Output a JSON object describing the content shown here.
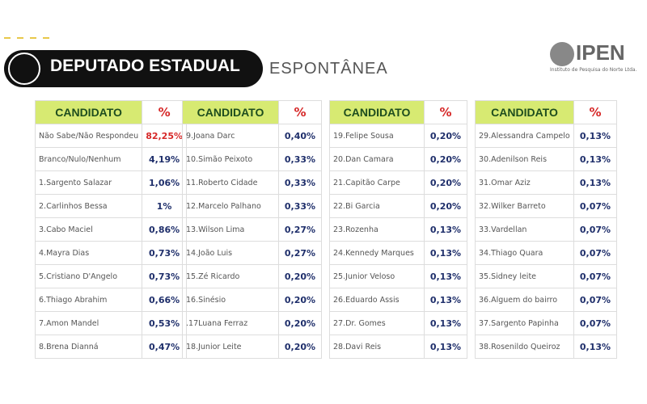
{
  "header": {
    "title": "DEPUTADO ESTADUAL",
    "subtitle": "ESPONTÂNEA",
    "logo": "IPEN",
    "logo_caption": "Instituto de Pesquisa do Norte Ltda."
  },
  "tables": [
    {
      "columns": [
        "CANDIDATO",
        "%"
      ],
      "rows": [
        [
          "Não Sabe/Não Respondeu",
          "82,25%"
        ],
        [
          "Branco/Nulo/Nenhum",
          "4,19%"
        ],
        [
          "1.Sargento Salazar",
          "1,06%"
        ],
        [
          "2.Carlinhos Bessa",
          "1%"
        ],
        [
          "3.Cabo Maciel",
          "0,86%"
        ],
        [
          "4.Mayra Dias",
          "0,73%"
        ],
        [
          "5.Cristiano D'Angelo",
          "0,73%"
        ],
        [
          "6.Thiago Abrahim",
          "0,66%"
        ],
        [
          "7.Amon Mandel",
          "0,53%"
        ],
        [
          "8.Brena Dianná",
          "0,47%"
        ]
      ]
    },
    {
      "columns": [
        "CANDIDATO",
        "%"
      ],
      "rows": [
        [
          "9.Joana Darc",
          "0,40%"
        ],
        [
          "10.Simão Peixoto",
          "0,33%"
        ],
        [
          "11.Roberto Cidade",
          "0,33%"
        ],
        [
          "12.Marcelo Palhano",
          "0,33%"
        ],
        [
          "13.Wilson Lima",
          "0,27%"
        ],
        [
          "14.João Luis",
          "0,27%"
        ],
        [
          "15.Zé Ricardo",
          "0,20%"
        ],
        [
          "16.Sinésio",
          "0,20%"
        ],
        [
          ".17Luana Ferraz",
          "0,20%"
        ],
        [
          "18.Junior Leite",
          "0,20%"
        ]
      ]
    },
    {
      "columns": [
        "CANDIDATO",
        "%"
      ],
      "rows": [
        [
          "19.Felipe Sousa",
          "0,20%"
        ],
        [
          "20.Dan Camara",
          "0,20%"
        ],
        [
          "21.Capitão Carpe",
          "0,20%"
        ],
        [
          "22.Bi Garcia",
          "0,20%"
        ],
        [
          "23.Rozenha",
          "0,13%"
        ],
        [
          "24.Kennedy Marques",
          "0,13%"
        ],
        [
          "25.Junior Veloso",
          "0,13%"
        ],
        [
          "26.Eduardo Assis",
          "0,13%"
        ],
        [
          "27.Dr. Gomes",
          "0,13%"
        ],
        [
          "28.Davi Reis",
          "0,13%"
        ]
      ]
    },
    {
      "columns": [
        "CANDIDATO",
        "%"
      ],
      "rows": [
        [
          "29.Alessandra Campelo",
          "0,13%"
        ],
        [
          "30.Adenilson Reis",
          "0,13%"
        ],
        [
          "31.Omar Aziz",
          "0,13%"
        ],
        [
          "32.Wilker Barreto",
          "0,07%"
        ],
        [
          "33.Vardellan",
          "0,07%"
        ],
        [
          "34.Thiago Quara",
          "0,07%"
        ],
        [
          "35.Sidney leite",
          "0,07%"
        ],
        [
          "36.Alguem do bairro",
          "0,07%"
        ],
        [
          "37.Sargento Papinha",
          "0,07%"
        ],
        [
          "38.Rosenildo Queiroz",
          "0,13%"
        ]
      ]
    }
  ]
}
